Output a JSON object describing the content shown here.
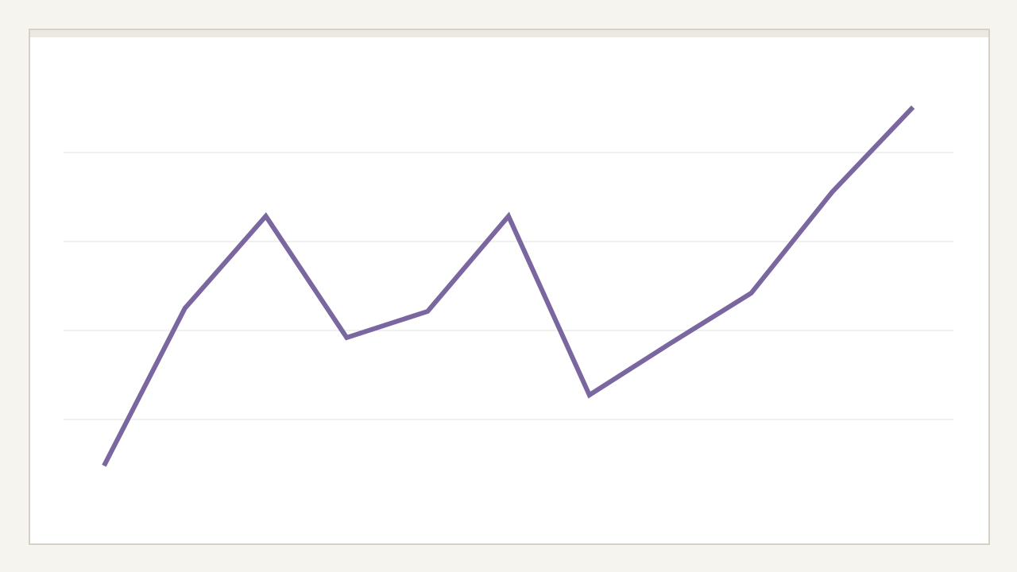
{
  "chart_data": {
    "type": "line",
    "categories": [
      null,
      null,
      null,
      null,
      null,
      null,
      null,
      null,
      null,
      null,
      null
    ],
    "values": [
      9.6,
      45,
      65.7,
      38.4,
      44.3,
      65.7,
      25.5,
      37.1,
      48.4,
      71.1,
      90.2
    ],
    "color": "#7a67a0",
    "ylim": [
      0,
      100
    ],
    "yticks": [
      20,
      40,
      60,
      80
    ],
    "grid": true,
    "tick_labels": false
  }
}
